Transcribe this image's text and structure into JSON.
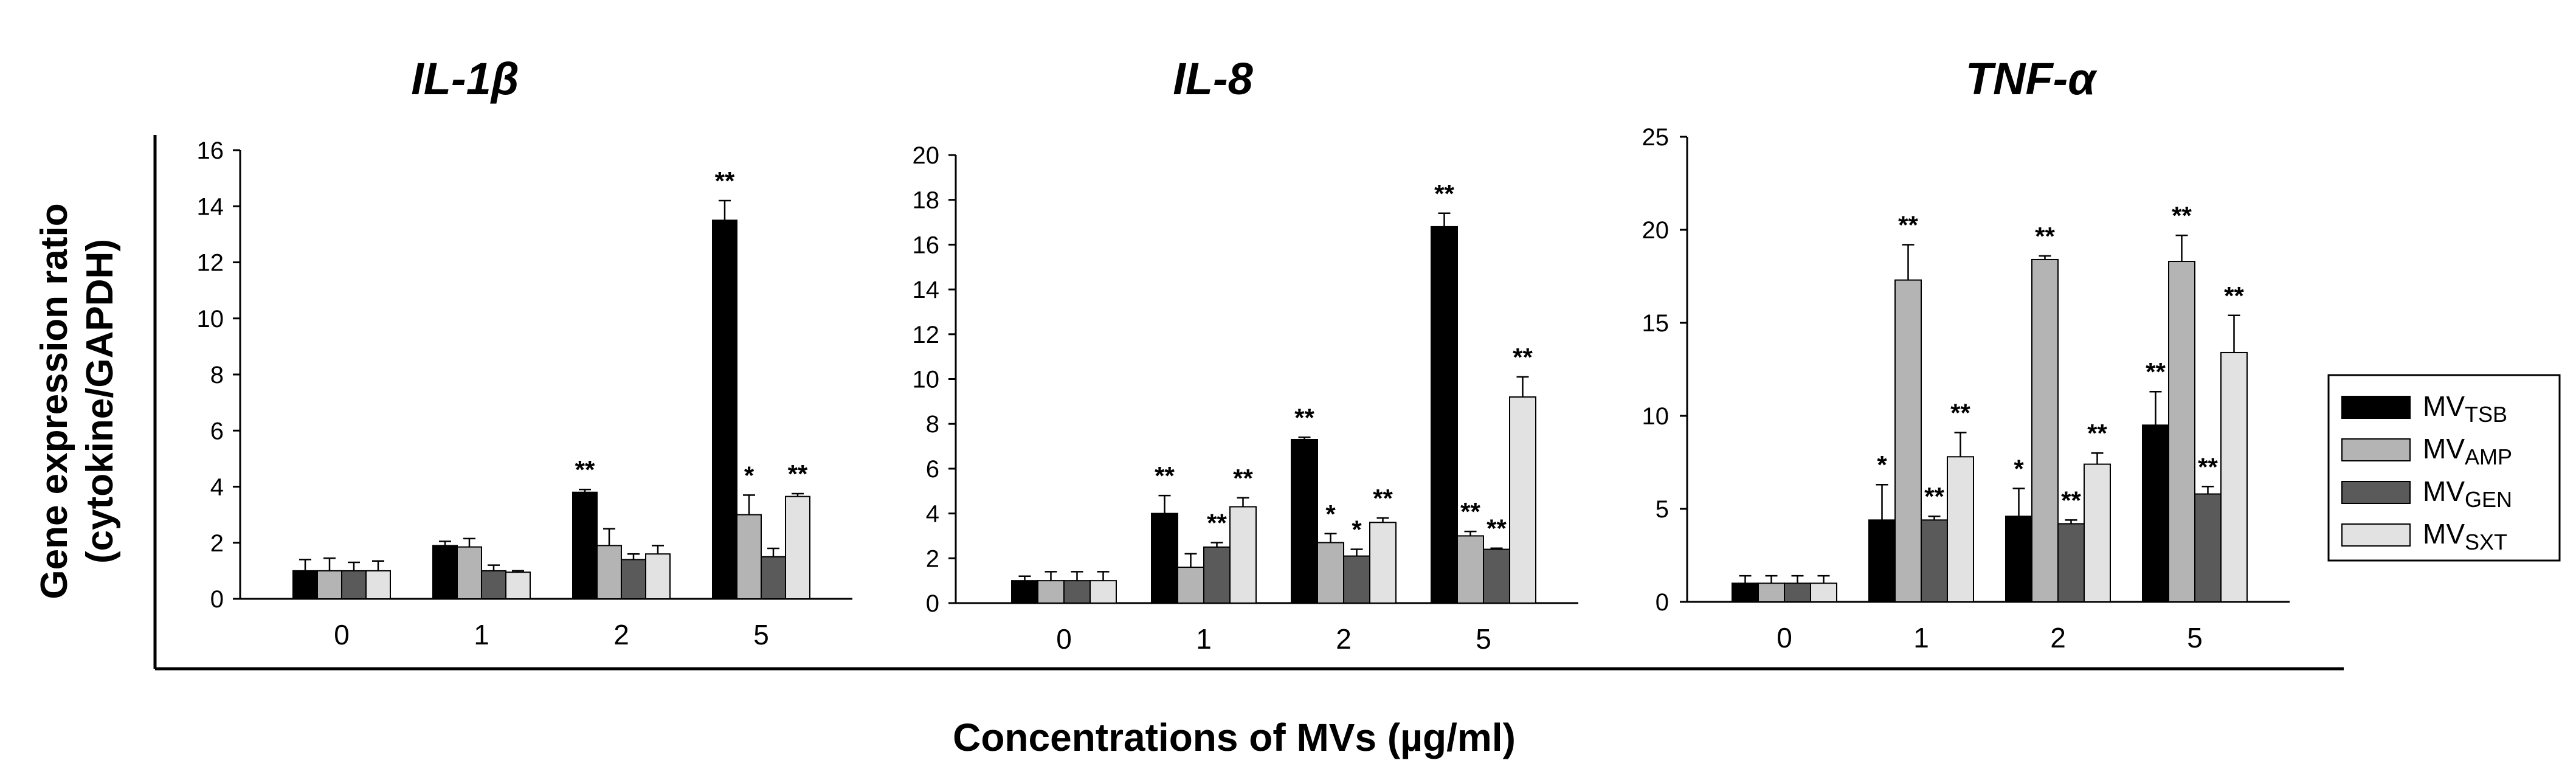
{
  "chart_data": {
    "type": "bar",
    "ylabel_line1": "Gene expression ratio",
    "ylabel_line2": "(cytokine/GAPDH)",
    "xlabel": "Concentrations of MVs (µg/ml)",
    "legend": [
      {
        "base": "MV",
        "sub": "TSB",
        "color": "#000000"
      },
      {
        "base": "MV",
        "sub": "AMP",
        "color": "#b4b4b4"
      },
      {
        "base": "MV",
        "sub": "GEN",
        "color": "#5a5a5a"
      },
      {
        "base": "MV",
        "sub": "SXT",
        "color": "#e2e2e2"
      }
    ],
    "panels": [
      {
        "title": "IL-1β",
        "categories": [
          "0",
          "1",
          "2",
          "5"
        ],
        "ylim": [
          0,
          16
        ],
        "yticks": [
          0,
          2,
          4,
          6,
          8,
          10,
          12,
          14,
          16
        ],
        "series": [
          {
            "name": "MVTSB",
            "values": [
              1.0,
              1.9,
              3.8,
              13.5
            ],
            "errors": [
              0.4,
              0.15,
              0.1,
              0.7
            ],
            "sig": [
              "",
              "",
              "**",
              "**"
            ]
          },
          {
            "name": "MVAMP",
            "values": [
              1.0,
              1.85,
              1.9,
              3.0
            ],
            "errors": [
              0.45,
              0.3,
              0.6,
              0.7
            ],
            "sig": [
              "",
              "",
              "",
              "*"
            ]
          },
          {
            "name": "MVGEN",
            "values": [
              1.0,
              1.0,
              1.4,
              1.5
            ],
            "errors": [
              0.3,
              0.2,
              0.2,
              0.3
            ],
            "sig": [
              "",
              "",
              "",
              ""
            ]
          },
          {
            "name": "MVSXT",
            "values": [
              1.0,
              0.95,
              1.6,
              3.65
            ],
            "errors": [
              0.35,
              0.05,
              0.3,
              0.1
            ],
            "sig": [
              "",
              "",
              "",
              "**"
            ]
          }
        ]
      },
      {
        "title": "IL-8",
        "categories": [
          "0",
          "1",
          "2",
          "5"
        ],
        "ylim": [
          0,
          20
        ],
        "yticks": [
          0,
          2,
          4,
          6,
          8,
          10,
          12,
          14,
          16,
          18,
          20
        ],
        "series": [
          {
            "name": "MVTSB",
            "values": [
              1.0,
              4.0,
              7.3,
              16.8
            ],
            "errors": [
              0.2,
              0.8,
              0.1,
              0.6
            ],
            "sig": [
              "",
              "**",
              "**",
              "**"
            ]
          },
          {
            "name": "MVAMP",
            "values": [
              1.0,
              1.6,
              2.7,
              3.0
            ],
            "errors": [
              0.4,
              0.6,
              0.4,
              0.2
            ],
            "sig": [
              "",
              "",
              "*",
              "**"
            ]
          },
          {
            "name": "MVGEN",
            "values": [
              1.0,
              2.5,
              2.1,
              2.4
            ],
            "errors": [
              0.4,
              0.2,
              0.3,
              0.05
            ],
            "sig": [
              "",
              "**",
              "*",
              "**"
            ]
          },
          {
            "name": "MVSXT",
            "values": [
              1.0,
              4.3,
              3.6,
              9.2
            ],
            "errors": [
              0.4,
              0.4,
              0.2,
              0.9
            ],
            "sig": [
              "",
              "**",
              "**",
              "**"
            ]
          }
        ]
      },
      {
        "title": "TNF-α",
        "categories": [
          "0",
          "1",
          "2",
          "5"
        ],
        "ylim": [
          0,
          25
        ],
        "yticks": [
          0,
          5,
          10,
          15,
          20,
          25
        ],
        "series": [
          {
            "name": "MVTSB",
            "values": [
              1.0,
              4.4,
              4.6,
              9.5
            ],
            "errors": [
              0.4,
              1.9,
              1.5,
              1.8
            ],
            "sig": [
              "",
              "*",
              "*",
              "**"
            ]
          },
          {
            "name": "MVAMP",
            "values": [
              1.0,
              17.3,
              18.4,
              18.3
            ],
            "errors": [
              0.4,
              1.9,
              0.2,
              1.4
            ],
            "sig": [
              "",
              "**",
              "**",
              "**"
            ]
          },
          {
            "name": "MVGEN",
            "values": [
              1.0,
              4.4,
              4.2,
              5.8
            ],
            "errors": [
              0.4,
              0.2,
              0.2,
              0.4
            ],
            "sig": [
              "",
              "**",
              "**",
              "**"
            ]
          },
          {
            "name": "MVSXT",
            "values": [
              1.0,
              7.8,
              7.4,
              13.4
            ],
            "errors": [
              0.4,
              1.3,
              0.6,
              2.0
            ],
            "sig": [
              "",
              "**",
              "**",
              "**"
            ]
          }
        ]
      }
    ]
  }
}
